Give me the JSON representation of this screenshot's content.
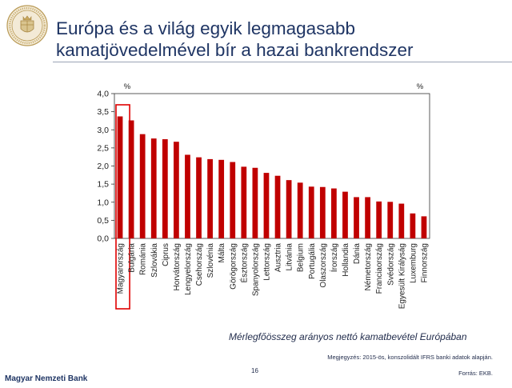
{
  "header": {
    "title_line1": "Európa és a világ egyik legmagasabb",
    "title_line2": "kamatjövedelmével bír a hazai bankrendszer",
    "logo_icon": "mnb-seal-icon"
  },
  "chart_data": {
    "type": "bar",
    "y_unit_left": "%",
    "y_unit_right": "%",
    "ylim": [
      0,
      4.0
    ],
    "yticks": [
      "4,0",
      "3,5",
      "3,0",
      "2,5",
      "2,0",
      "1,5",
      "1,0",
      "0,5",
      "0,0"
    ],
    "categories": [
      "Magyarország",
      "Bulgária",
      "Románia",
      "Szlovákia",
      "Ciprus",
      "Horvátország",
      "Lengyelország",
      "Csehország",
      "Szlovénia",
      "Málta",
      "Görögország",
      "Észtország",
      "Spanyolország",
      "Lettország",
      "Ausztria",
      "Litvánia",
      "Belgium",
      "Portugália",
      "Olaszország",
      "Írország",
      "Hollandia",
      "Dánia",
      "Németország",
      "Franciaország",
      "Svédország",
      "Egyesült Királyság",
      "Luxemburg",
      "Finnország"
    ],
    "values": [
      3.37,
      3.26,
      2.88,
      2.76,
      2.74,
      2.67,
      2.31,
      2.24,
      2.19,
      2.17,
      2.11,
      1.98,
      1.95,
      1.81,
      1.73,
      1.61,
      1.54,
      1.43,
      1.42,
      1.38,
      1.29,
      1.14,
      1.14,
      1.02,
      1.01,
      0.96,
      0.69,
      0.61
    ],
    "highlight_index": 0,
    "bar_color": "#c00000",
    "highlight_color": "#e00000",
    "grid": false
  },
  "footer": {
    "caption": "Mérlegfőösszeg arányos nettó kamatbevétel Európában",
    "note": "Megjegyzés: 2015-ös, konszolidált IFRS banki adatok alapján.",
    "source": "Forrás: EKB.",
    "page_number": "16",
    "bank_name": "Magyar Nemzeti Bank"
  }
}
